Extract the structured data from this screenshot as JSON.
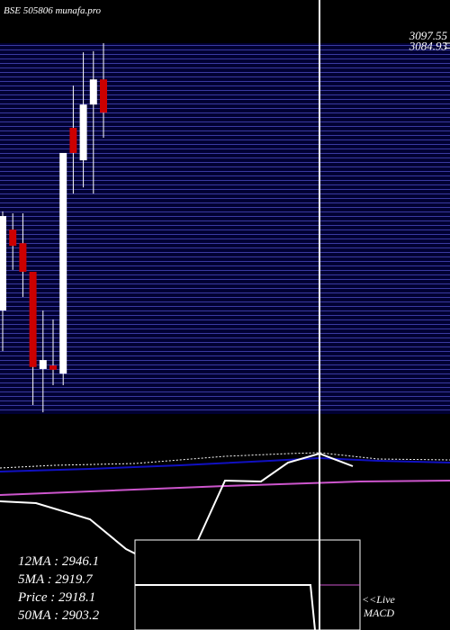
{
  "chart_data": {
    "type": "candlestick",
    "title": "BSE 505806 munafa.pro",
    "categories": [
      null,
      null,
      null,
      null,
      null,
      null,
      null,
      null,
      null,
      null,
      null
    ],
    "open": [
      2407,
      2616,
      2581,
      2507,
      2256,
      2265,
      2244,
      2879,
      2795,
      2939,
      3004
    ],
    "high": [
      2663,
      2658,
      2658,
      2507,
      2407,
      2384,
      2814,
      2988,
      3074,
      3077,
      3097.55
    ],
    "low": [
      2302,
      2512,
      2442,
      2163,
      2144,
      2214,
      2214,
      2709,
      2725,
      2709,
      2853
    ],
    "close": [
      2651,
      2574,
      2507,
      2261,
      2279,
      2254,
      2814,
      2814,
      2939,
      3004,
      2918.1
    ],
    "up_color": "#ffffff",
    "down_color": "#cc0000",
    "ylim": [
      2139.65,
      3097.55
    ],
    "yticks": [
      3097.55,
      3084.93
    ],
    "indicators": [
      "12MA : 2946.1",
      "5MA : 2919.7",
      "Price   : 2918.1",
      "50MA : 2903.2"
    ],
    "live_label": "<<Live",
    "macd_label": "MACD"
  }
}
